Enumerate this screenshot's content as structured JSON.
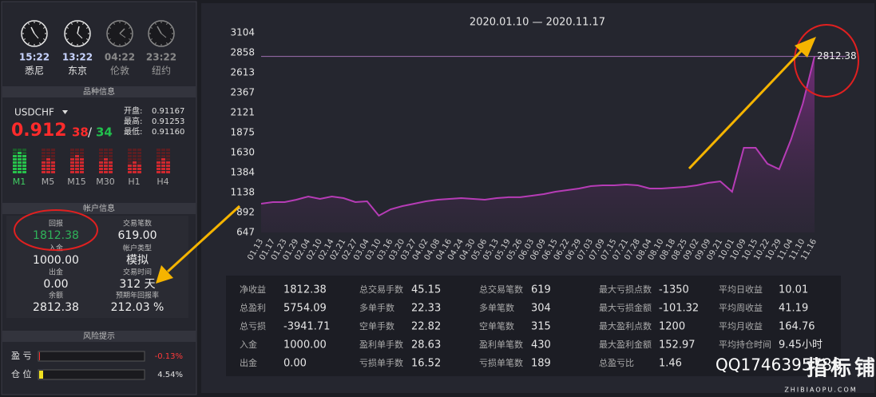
{
  "clocks": [
    {
      "time": "15:22",
      "city": "悉尼"
    },
    {
      "time": "13:22",
      "city": "东京"
    },
    {
      "time": "04:22",
      "city": "伦敦"
    },
    {
      "time": "23:22",
      "city": "纽约"
    }
  ],
  "instrument": {
    "section": "品种信息",
    "symbol": "USDCHF",
    "price_main": "0.912",
    "price_bid_tail": "38",
    "separator": "/",
    "price_ask_tail": "34",
    "open_label": "开盘:",
    "open": "0.91167",
    "high_label": "最高:",
    "high": "0.91253",
    "low_label": "最低:",
    "low": "0.91160",
    "timeframes": [
      "M1",
      "M5",
      "M15",
      "M30",
      "H1",
      "H4"
    ]
  },
  "account": {
    "section": "帐户信息",
    "fields": [
      {
        "label": "回报",
        "value": "1812.38"
      },
      {
        "label": "交易笔数",
        "value": "619.00"
      },
      {
        "label": "入金",
        "value": "1000.00"
      },
      {
        "label": "帐户类型",
        "value": "模拟"
      },
      {
        "label": "出金",
        "value": "0.00"
      },
      {
        "label": "交易时间",
        "value": "312 天"
      },
      {
        "label": "余额",
        "value": "2812.38"
      },
      {
        "label": "预期年回报率",
        "value": "212.03 %"
      }
    ]
  },
  "risk": {
    "section": "风险提示",
    "rows": [
      {
        "label": "盈 亏",
        "value": "-0.13%"
      },
      {
        "label": "仓 位",
        "value": "4.54%"
      }
    ]
  },
  "chart_data": {
    "type": "area",
    "title": "2020.01.10 — 2020.11.17",
    "color": "#b63cb6",
    "grid": false,
    "categories": [
      "01.13",
      "01.17",
      "01.23",
      "01.29",
      "02.04",
      "02.10",
      "02.14",
      "02.21",
      "02.27",
      "03.04",
      "03.10",
      "03.16",
      "03.20",
      "03.27",
      "04.02",
      "04.08",
      "04.16",
      "04.24",
      "04.30",
      "05.06",
      "05.13",
      "05.19",
      "05.26",
      "06.03",
      "06.09",
      "06.15",
      "06.22",
      "06.29",
      "07.03",
      "07.09",
      "07.15",
      "07.21",
      "07.28",
      "08.04",
      "08.10",
      "08.18",
      "08.25",
      "09.02",
      "09.09",
      "09.21",
      "10.01",
      "10.09",
      "10.15",
      "10.22",
      "10.29",
      "11.04",
      "11.10",
      "11.16"
    ],
    "values": [
      1001,
      1020,
      1020,
      1050,
      1089,
      1060,
      1089,
      1070,
      1020,
      1030,
      853,
      932,
      971,
      1001,
      1030,
      1050,
      1060,
      1070,
      1060,
      1050,
      1070,
      1080,
      1080,
      1099,
      1119,
      1148,
      1168,
      1188,
      1217,
      1227,
      1227,
      1237,
      1227,
      1188,
      1188,
      1197,
      1207,
      1227,
      1257,
      1276,
      1148,
      1689,
      1689,
      1493,
      1424,
      1788,
      2230,
      2812.38
    ],
    "ylim": [
      647,
      3104
    ],
    "yticks": [
      647,
      892,
      1138,
      1384,
      1630,
      1875,
      2121,
      2367,
      2613,
      2858,
      3104
    ]
  },
  "stats": {
    "columns": [
      [
        {
          "label": "净收益",
          "value": "1812.38"
        },
        {
          "label": "总盈利",
          "value": "5754.09"
        },
        {
          "label": "总亏损",
          "value": "-3941.71"
        },
        {
          "label": "入金",
          "value": "1000.00"
        },
        {
          "label": "出金",
          "value": "0.00"
        }
      ],
      [
        {
          "label": "总交易手数",
          "value": "45.15"
        },
        {
          "label": "多单手数",
          "value": "22.33"
        },
        {
          "label": "空单手数",
          "value": "22.82"
        },
        {
          "label": "盈利单手数",
          "value": "28.63"
        },
        {
          "label": "亏损单手数",
          "value": "16.52"
        }
      ],
      [
        {
          "label": "总交易笔数",
          "value": "619"
        },
        {
          "label": "多单笔数",
          "value": "304"
        },
        {
          "label": "空单笔数",
          "value": "315"
        },
        {
          "label": "盈利单笔数",
          "value": "430"
        },
        {
          "label": "亏损单笔数",
          "value": "189"
        }
      ],
      [
        {
          "label": "最大亏损点数",
          "value": "-1350"
        },
        {
          "label": "最大亏损金额",
          "value": "-101.32"
        },
        {
          "label": "最大盈利点数",
          "value": "1200"
        },
        {
          "label": "最大盈利金额",
          "value": "152.97"
        },
        {
          "label": "总盈亏比",
          "value": "1.46"
        }
      ],
      [
        {
          "label": "平均日收益",
          "value": "10.01"
        },
        {
          "label": "平均周收益",
          "value": "41.19"
        },
        {
          "label": "平均月收益",
          "value": "164.76"
        },
        {
          "label": "平均持仓时间",
          "value": "9.45小时"
        }
      ]
    ]
  },
  "watermark": {
    "qq": "QQ1746395789",
    "site": "指标铺",
    "site_url": "ZHIBIAOPU.COM"
  }
}
